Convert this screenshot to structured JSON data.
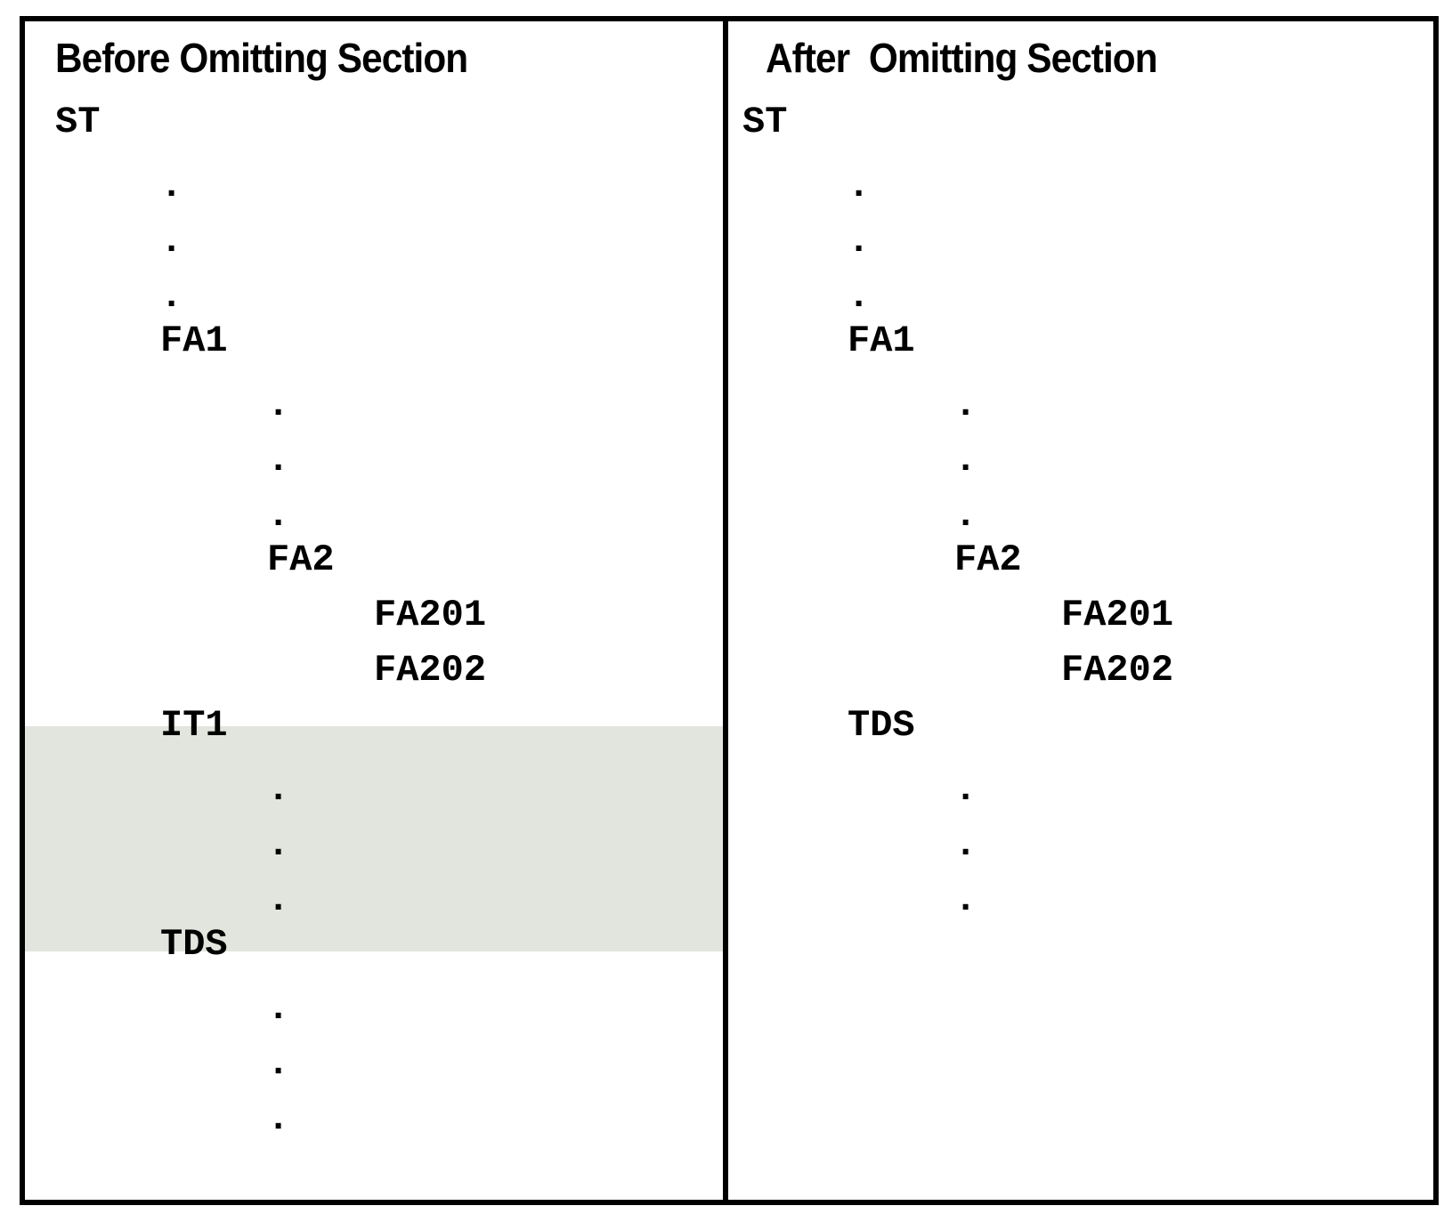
{
  "colors": {
    "highlight": "#e1e5dd",
    "border": "#000000",
    "text": "#000000"
  },
  "before": {
    "title": "Before Omitting Section",
    "lines": [
      {
        "text": "ST",
        "level": 0
      },
      {
        "text": ".",
        "level": 1
      },
      {
        "text": ".",
        "level": 1
      },
      {
        "text": ".",
        "level": 1
      },
      {
        "text": "FA1",
        "level": 1
      },
      {
        "text": ".",
        "level": 2
      },
      {
        "text": ".",
        "level": 2
      },
      {
        "text": ".",
        "level": 2
      },
      {
        "text": "FA2",
        "level": 2
      },
      {
        "text": "FA201",
        "level": 3
      },
      {
        "text": "FA202",
        "level": 3
      },
      {
        "text": "IT1",
        "level": 1,
        "highlighted": true
      },
      {
        "text": ".",
        "level": 2,
        "highlighted": true
      },
      {
        "text": ".",
        "level": 2,
        "highlighted": true
      },
      {
        "text": ".",
        "level": 2,
        "highlighted": true
      },
      {
        "text": "TDS",
        "level": 1
      },
      {
        "text": ".",
        "level": 2
      },
      {
        "text": ".",
        "level": 2
      },
      {
        "text": ".",
        "level": 2
      }
    ]
  },
  "after": {
    "title": "After  Omitting Section",
    "lines": [
      {
        "text": "ST",
        "level": 0
      },
      {
        "text": ".",
        "level": 1
      },
      {
        "text": ".",
        "level": 1
      },
      {
        "text": ".",
        "level": 1
      },
      {
        "text": "FA1",
        "level": 1
      },
      {
        "text": ".",
        "level": 2
      },
      {
        "text": ".",
        "level": 2
      },
      {
        "text": ".",
        "level": 2
      },
      {
        "text": "FA2",
        "level": 2
      },
      {
        "text": "FA201",
        "level": 3
      },
      {
        "text": "FA202",
        "level": 3
      },
      {
        "text": "TDS",
        "level": 1
      },
      {
        "text": ".",
        "level": 2
      },
      {
        "text": ".",
        "level": 2
      },
      {
        "text": ".",
        "level": 2
      }
    ]
  }
}
